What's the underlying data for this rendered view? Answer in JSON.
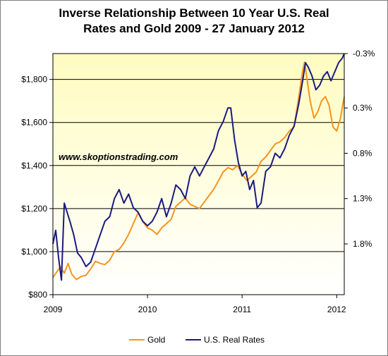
{
  "chart_data": {
    "type": "line",
    "title": "Inverse Relationship Between 10 Year U.S. Real Rates and Gold  2009 - 27 January 2012",
    "title_line1": "Inverse Relationship Between 10 Year U.S. Real",
    "title_line2": "Rates and Gold  2009 - 27 January 2012",
    "watermark": "www.skoptionstrading.com",
    "left_axis": {
      "ticks": [
        800,
        1000,
        1200,
        1400,
        1600,
        1800
      ],
      "tick_labels": [
        "$800",
        "$1,000",
        "$1,200",
        "$1,400",
        "$1,600",
        "$1,800"
      ],
      "range": [
        800,
        1920
      ]
    },
    "right_axis": {
      "ticks": [
        -0.3,
        0.3,
        0.8,
        1.3,
        1.8
      ],
      "tick_labels": [
        "-0.3%",
        "0.3%",
        "0.8%",
        "1.3%",
        "1.8%"
      ],
      "reversed": true,
      "value_at_left_800": 2.36,
      "value_at_left_1920": -0.3
    },
    "x_axis": {
      "ticks": [
        2009,
        2010,
        2011,
        2012
      ],
      "tick_labels": [
        "2009",
        "2010",
        "2011",
        "2012"
      ],
      "range": [
        2009.0,
        2012.08
      ]
    },
    "background": "gradient #fffcc0 to #ffffff",
    "grid": "horizontal at left-axis ticks",
    "legend_placement": "bottom-center",
    "series": [
      {
        "name": "Gold",
        "axis": "left",
        "color": "#f7941d",
        "x": [
          2009.0,
          2009.04,
          2009.08,
          2009.12,
          2009.16,
          2009.2,
          2009.25,
          2009.3,
          2009.35,
          2009.4,
          2009.45,
          2009.5,
          2009.55,
          2009.6,
          2009.65,
          2009.7,
          2009.75,
          2009.8,
          2009.85,
          2009.9,
          2009.95,
          2010.0,
          2010.05,
          2010.1,
          2010.15,
          2010.2,
          2010.25,
          2010.3,
          2010.35,
          2010.4,
          2010.45,
          2010.5,
          2010.55,
          2010.6,
          2010.65,
          2010.7,
          2010.75,
          2010.8,
          2010.85,
          2010.9,
          2010.95,
          2011.0,
          2011.05,
          2011.1,
          2011.15,
          2011.2,
          2011.25,
          2011.3,
          2011.35,
          2011.4,
          2011.45,
          2011.5,
          2011.55,
          2011.6,
          2011.64,
          2011.66,
          2011.68,
          2011.72,
          2011.76,
          2011.8,
          2011.84,
          2011.88,
          2011.92,
          2011.96,
          2012.0,
          2012.04,
          2012.08
        ],
        "values": [
          880,
          905,
          930,
          900,
          945,
          895,
          870,
          885,
          890,
          920,
          955,
          945,
          940,
          960,
          1000,
          1010,
          1040,
          1080,
          1130,
          1180,
          1140,
          1110,
          1100,
          1080,
          1110,
          1130,
          1150,
          1210,
          1230,
          1250,
          1220,
          1210,
          1200,
          1230,
          1260,
          1290,
          1330,
          1370,
          1390,
          1380,
          1400,
          1360,
          1330,
          1350,
          1370,
          1420,
          1440,
          1470,
          1500,
          1510,
          1530,
          1560,
          1580,
          1720,
          1840,
          1880,
          1820,
          1700,
          1620,
          1650,
          1700,
          1720,
          1680,
          1580,
          1560,
          1620,
          1720
        ]
      },
      {
        "name": "U.S. Real Rates",
        "axis": "right",
        "color": "#1a1a80",
        "x": [
          2009.0,
          2009.03,
          2009.06,
          2009.09,
          2009.12,
          2009.15,
          2009.18,
          2009.22,
          2009.26,
          2009.3,
          2009.35,
          2009.4,
          2009.45,
          2009.5,
          2009.55,
          2009.6,
          2009.65,
          2009.7,
          2009.75,
          2009.8,
          2009.85,
          2009.9,
          2009.95,
          2010.0,
          2010.05,
          2010.1,
          2010.15,
          2010.2,
          2010.25,
          2010.3,
          2010.35,
          2010.4,
          2010.45,
          2010.5,
          2010.55,
          2010.6,
          2010.65,
          2010.7,
          2010.75,
          2010.8,
          2010.85,
          2010.88,
          2010.92,
          2010.96,
          2011.0,
          2011.04,
          2011.08,
          2011.12,
          2011.16,
          2011.2,
          2011.25,
          2011.3,
          2011.35,
          2011.4,
          2011.45,
          2011.5,
          2011.55,
          2011.6,
          2011.64,
          2011.67,
          2011.7,
          2011.74,
          2011.78,
          2011.82,
          2011.86,
          2011.9,
          2011.94,
          2011.98,
          2012.02,
          2012.06,
          2012.08
        ],
        "values": [
          1.8,
          1.65,
          1.95,
          2.2,
          1.35,
          1.45,
          1.55,
          1.7,
          1.9,
          1.95,
          2.05,
          2.0,
          1.85,
          1.7,
          1.55,
          1.5,
          1.3,
          1.2,
          1.35,
          1.25,
          1.4,
          1.45,
          1.55,
          1.6,
          1.55,
          1.45,
          1.3,
          1.5,
          1.35,
          1.15,
          1.2,
          1.3,
          1.05,
          0.95,
          1.05,
          0.95,
          0.85,
          0.75,
          0.55,
          0.45,
          0.3,
          0.3,
          0.65,
          0.9,
          1.05,
          1.0,
          1.2,
          1.1,
          1.4,
          1.35,
          1.0,
          0.95,
          0.8,
          0.85,
          0.75,
          0.6,
          0.5,
          0.25,
          0.0,
          -0.2,
          -0.15,
          -0.05,
          0.1,
          0.05,
          -0.05,
          -0.1,
          0.0,
          -0.1,
          -0.2,
          -0.25,
          -0.3
        ]
      }
    ]
  }
}
